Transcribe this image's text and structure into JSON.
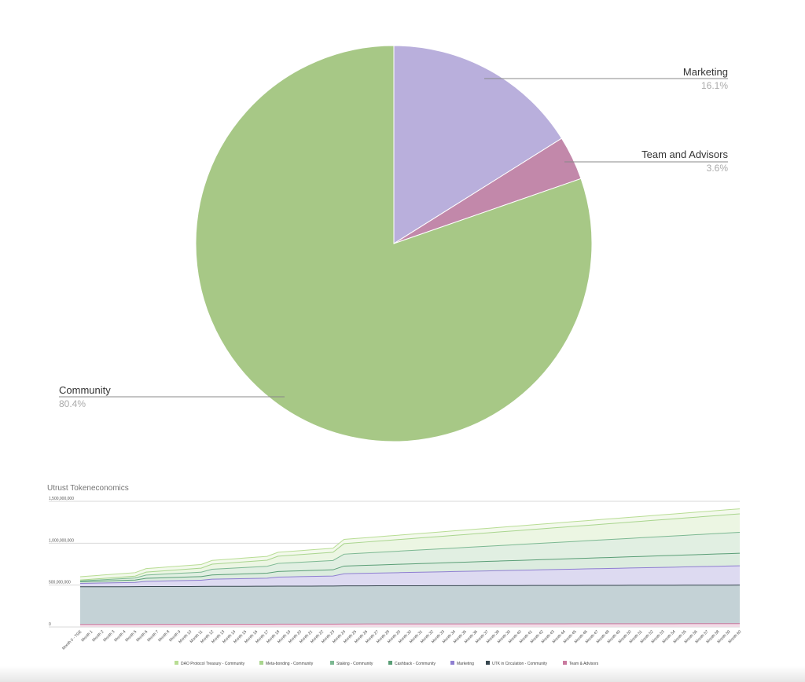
{
  "chart_data": [
    {
      "type": "pie",
      "slices": [
        {
          "label": "Marketing",
          "pct_label": "16.1%",
          "value": 16.1,
          "color": "#b9afdc"
        },
        {
          "label": "Team and Advisors",
          "pct_label": "3.6%",
          "value": 3.6,
          "color": "#c288aa"
        },
        {
          "label": "Community",
          "pct_label": "80.4%",
          "value": 80.4,
          "color": "#a7c886"
        }
      ]
    },
    {
      "type": "area",
      "title": "Utrust Tokeneconomics",
      "stacked": true,
      "ylim": [
        0,
        1500000000
      ],
      "yticks": [
        "0",
        "500,000,000",
        "1,000,000,000",
        "1,500,000,000"
      ],
      "ytick_values": [
        0,
        500000000,
        1000000000,
        1500000000
      ],
      "x": [
        "Month 0 - TGE",
        "Month 1",
        "Month 2",
        "Month 3",
        "Month 4",
        "Month 5",
        "Month 6",
        "Month 7",
        "Month 8",
        "Month 9",
        "Month 10",
        "Month 11",
        "Month 12",
        "Month 13",
        "Month 14",
        "Month 15",
        "Month 16",
        "Month 17",
        "Month 18",
        "Month 19",
        "Month 20",
        "Month 21",
        "Month 22",
        "Month 23",
        "Month 24",
        "Month 25",
        "Month 26",
        "Month 27",
        "Month 28",
        "Month 29",
        "Month 30",
        "Month 31",
        "Month 32",
        "Month 33",
        "Month 34",
        "Month 35",
        "Month 36",
        "Month 37",
        "Month 38",
        "Month 39",
        "Month 40",
        "Month 41",
        "Month 42",
        "Month 43",
        "Month 44",
        "Month 45",
        "Month 46",
        "Month 47",
        "Month 48",
        "Month 49",
        "Month 50",
        "Month 51",
        "Month 52",
        "Month 53",
        "Month 54",
        "Month 55",
        "Month 56",
        "Month 57",
        "Month 58",
        "Month 59",
        "Month 60"
      ],
      "series": [
        {
          "name": "Team & Advisors",
          "color": "#c97a9f",
          "fill": "#f2dbe6",
          "start": 30000000,
          "end": 40000000
        },
        {
          "name": "UTK in Circulation - Community",
          "color": "#37474f",
          "fill": "#c4d2d6",
          "start": 450000000,
          "end": 460000000
        },
        {
          "name": "Marketing",
          "color": "#8f7fd1",
          "fill": "#dddaf1",
          "start": 40000000,
          "end": 230000000
        },
        {
          "name": "Cashback - Community",
          "color": "#5a9e76",
          "fill": "#dcecdf",
          "start": 20000000,
          "end": 150000000
        },
        {
          "name": "Staking - Community",
          "color": "#7cb892",
          "fill": "#e1efe2",
          "start": 10000000,
          "end": 250000000
        },
        {
          "name": "Meta-bonding - Community",
          "color": "#a9d58e",
          "fill": "#ecf6e3",
          "start": 10000000,
          "end": 220000000
        },
        {
          "name": "DAO Protocol Treasury - Community",
          "color": "#b8dd94",
          "fill": "#f3f9ec",
          "start": 40000000,
          "end": 60000000
        }
      ],
      "legend_position": "bottom",
      "legend_order": [
        "DAO Protocol Treasury - Community",
        "Meta-bonding - Community",
        "Staking - Community",
        "Cashback - Community",
        "Marketing",
        "UTK in Circulation - Community",
        "Team & Advisors"
      ],
      "grid": true
    }
  ]
}
